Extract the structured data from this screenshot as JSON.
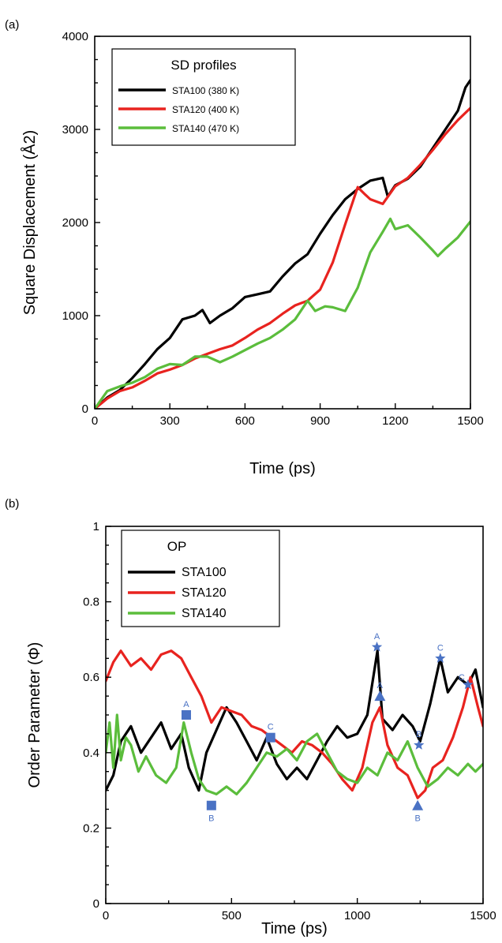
{
  "colors": {
    "black": "#000000",
    "red": "#e8231f",
    "green": "#5bbd3c",
    "marker": "#4a72c4"
  },
  "chart_data": [
    {
      "panel_label": "(a)",
      "type": "line",
      "ylabel": "Square Displacement (Å2)",
      "xlabel": "Time (ps)",
      "xlim": [
        0,
        1500
      ],
      "ylim": [
        0,
        4000
      ],
      "xticks": [
        0,
        300,
        600,
        900,
        1200,
        1500
      ],
      "yticks": [
        0,
        1000,
        2000,
        3000,
        4000
      ],
      "legend": {
        "title": "SD profiles",
        "placement": "top-left"
      },
      "series": [
        {
          "name": "STA100 (380 K)",
          "color": "#000000",
          "points": [
            [
              0,
              0
            ],
            [
              50,
              120
            ],
            [
              100,
              200
            ],
            [
              150,
              330
            ],
            [
              200,
              480
            ],
            [
              250,
              640
            ],
            [
              300,
              760
            ],
            [
              350,
              960
            ],
            [
              400,
              1000
            ],
            [
              430,
              1060
            ],
            [
              460,
              920
            ],
            [
              500,
              1000
            ],
            [
              550,
              1080
            ],
            [
              600,
              1200
            ],
            [
              650,
              1230
            ],
            [
              700,
              1260
            ],
            [
              750,
              1420
            ],
            [
              800,
              1560
            ],
            [
              850,
              1660
            ],
            [
              900,
              1880
            ],
            [
              950,
              2080
            ],
            [
              1000,
              2250
            ],
            [
              1050,
              2360
            ],
            [
              1100,
              2450
            ],
            [
              1150,
              2480
            ],
            [
              1170,
              2280
            ],
            [
              1200,
              2400
            ],
            [
              1250,
              2470
            ],
            [
              1300,
              2600
            ],
            [
              1350,
              2800
            ],
            [
              1400,
              3000
            ],
            [
              1450,
              3200
            ],
            [
              1480,
              3450
            ],
            [
              1500,
              3530
            ]
          ]
        },
        {
          "name": "STA120 (400 K)",
          "color": "#e8231f",
          "points": [
            [
              0,
              0
            ],
            [
              50,
              110
            ],
            [
              100,
              190
            ],
            [
              150,
              230
            ],
            [
              200,
              300
            ],
            [
              250,
              380
            ],
            [
              300,
              420
            ],
            [
              350,
              470
            ],
            [
              400,
              540
            ],
            [
              450,
              590
            ],
            [
              500,
              640
            ],
            [
              550,
              680
            ],
            [
              600,
              760
            ],
            [
              650,
              850
            ],
            [
              700,
              920
            ],
            [
              750,
              1020
            ],
            [
              800,
              1110
            ],
            [
              850,
              1160
            ],
            [
              900,
              1280
            ],
            [
              950,
              1570
            ],
            [
              1000,
              1980
            ],
            [
              1050,
              2380
            ],
            [
              1080,
              2300
            ],
            [
              1100,
              2250
            ],
            [
              1150,
              2200
            ],
            [
              1200,
              2390
            ],
            [
              1250,
              2480
            ],
            [
              1300,
              2620
            ],
            [
              1350,
              2780
            ],
            [
              1400,
              2950
            ],
            [
              1450,
              3100
            ],
            [
              1500,
              3230
            ]
          ]
        },
        {
          "name": "STA140 (470 K)",
          "color": "#5bbd3c",
          "points": [
            [
              0,
              0
            ],
            [
              50,
              190
            ],
            [
              100,
              240
            ],
            [
              150,
              280
            ],
            [
              200,
              340
            ],
            [
              250,
              430
            ],
            [
              300,
              480
            ],
            [
              350,
              470
            ],
            [
              400,
              560
            ],
            [
              450,
              560
            ],
            [
              500,
              500
            ],
            [
              550,
              560
            ],
            [
              600,
              630
            ],
            [
              650,
              700
            ],
            [
              700,
              760
            ],
            [
              750,
              850
            ],
            [
              800,
              960
            ],
            [
              850,
              1160
            ],
            [
              880,
              1050
            ],
            [
              920,
              1100
            ],
            [
              950,
              1090
            ],
            [
              1000,
              1050
            ],
            [
              1050,
              1300
            ],
            [
              1100,
              1680
            ],
            [
              1150,
              1900
            ],
            [
              1180,
              2040
            ],
            [
              1200,
              1930
            ],
            [
              1250,
              1970
            ],
            [
              1300,
              1840
            ],
            [
              1350,
              1700
            ],
            [
              1370,
              1640
            ],
            [
              1400,
              1720
            ],
            [
              1450,
              1840
            ],
            [
              1500,
              2010
            ]
          ]
        }
      ]
    },
    {
      "panel_label": "(b)",
      "type": "line",
      "ylabel": "Order Parameter (Φ)",
      "xlabel": "Time (ps)",
      "xlim": [
        0,
        1500
      ],
      "ylim": [
        0,
        1
      ],
      "xticks": [
        0,
        500,
        1000,
        1500
      ],
      "yticks": [
        0,
        0.2,
        0.4,
        0.6,
        0.8,
        1
      ],
      "ytick_labels": [
        "0",
        "0.2",
        "0.4",
        "0.6",
        "0.8",
        "1"
      ],
      "legend": {
        "title": "OP",
        "placement": "top-left"
      },
      "series": [
        {
          "name": "STA100",
          "color": "#000000",
          "points": [
            [
              0,
              0.3
            ],
            [
              30,
              0.34
            ],
            [
              60,
              0.43
            ],
            [
              100,
              0.47
            ],
            [
              140,
              0.4
            ],
            [
              180,
              0.44
            ],
            [
              220,
              0.48
            ],
            [
              260,
              0.41
            ],
            [
              300,
              0.45
            ],
            [
              330,
              0.36
            ],
            [
              370,
              0.3
            ],
            [
              400,
              0.4
            ],
            [
              440,
              0.46
            ],
            [
              480,
              0.52
            ],
            [
              520,
              0.48
            ],
            [
              560,
              0.43
            ],
            [
              600,
              0.38
            ],
            [
              640,
              0.44
            ],
            [
              680,
              0.37
            ],
            [
              720,
              0.33
            ],
            [
              760,
              0.36
            ],
            [
              800,
              0.33
            ],
            [
              840,
              0.38
            ],
            [
              880,
              0.43
            ],
            [
              920,
              0.47
            ],
            [
              960,
              0.44
            ],
            [
              1000,
              0.45
            ],
            [
              1040,
              0.5
            ],
            [
              1080,
              0.67
            ],
            [
              1100,
              0.49
            ],
            [
              1140,
              0.46
            ],
            [
              1180,
              0.5
            ],
            [
              1220,
              0.47
            ],
            [
              1250,
              0.43
            ],
            [
              1290,
              0.53
            ],
            [
              1330,
              0.65
            ],
            [
              1360,
              0.56
            ],
            [
              1400,
              0.6
            ],
            [
              1440,
              0.58
            ],
            [
              1470,
              0.62
            ],
            [
              1500,
              0.52
            ]
          ]
        },
        {
          "name": "STA120",
          "color": "#e8231f",
          "points": [
            [
              0,
              0.59
            ],
            [
              30,
              0.64
            ],
            [
              60,
              0.67
            ],
            [
              100,
              0.63
            ],
            [
              140,
              0.65
            ],
            [
              180,
              0.62
            ],
            [
              220,
              0.66
            ],
            [
              260,
              0.67
            ],
            [
              300,
              0.65
            ],
            [
              340,
              0.6
            ],
            [
              380,
              0.55
            ],
            [
              420,
              0.48
            ],
            [
              460,
              0.52
            ],
            [
              500,
              0.51
            ],
            [
              540,
              0.5
            ],
            [
              580,
              0.47
            ],
            [
              620,
              0.46
            ],
            [
              660,
              0.44
            ],
            [
              700,
              0.42
            ],
            [
              740,
              0.4
            ],
            [
              780,
              0.43
            ],
            [
              820,
              0.42
            ],
            [
              860,
              0.4
            ],
            [
              900,
              0.37
            ],
            [
              940,
              0.33
            ],
            [
              980,
              0.3
            ],
            [
              1020,
              0.36
            ],
            [
              1060,
              0.48
            ],
            [
              1090,
              0.52
            ],
            [
              1120,
              0.42
            ],
            [
              1160,
              0.36
            ],
            [
              1200,
              0.34
            ],
            [
              1240,
              0.28
            ],
            [
              1270,
              0.3
            ],
            [
              1300,
              0.36
            ],
            [
              1340,
              0.38
            ],
            [
              1380,
              0.44
            ],
            [
              1420,
              0.52
            ],
            [
              1450,
              0.6
            ],
            [
              1480,
              0.52
            ],
            [
              1500,
              0.47
            ]
          ]
        },
        {
          "name": "STA140",
          "color": "#5bbd3c",
          "points": [
            [
              0,
              0.4
            ],
            [
              15,
              0.48
            ],
            [
              30,
              0.36
            ],
            [
              45,
              0.5
            ],
            [
              60,
              0.38
            ],
            [
              80,
              0.44
            ],
            [
              100,
              0.42
            ],
            [
              130,
              0.35
            ],
            [
              160,
              0.39
            ],
            [
              200,
              0.34
            ],
            [
              240,
              0.32
            ],
            [
              280,
              0.36
            ],
            [
              310,
              0.48
            ],
            [
              340,
              0.4
            ],
            [
              370,
              0.33
            ],
            [
              400,
              0.3
            ],
            [
              440,
              0.29
            ],
            [
              480,
              0.31
            ],
            [
              520,
              0.29
            ],
            [
              560,
              0.32
            ],
            [
              600,
              0.36
            ],
            [
              640,
              0.4
            ],
            [
              680,
              0.39
            ],
            [
              720,
              0.41
            ],
            [
              760,
              0.38
            ],
            [
              800,
              0.43
            ],
            [
              840,
              0.45
            ],
            [
              880,
              0.4
            ],
            [
              920,
              0.35
            ],
            [
              960,
              0.33
            ],
            [
              1000,
              0.32
            ],
            [
              1040,
              0.36
            ],
            [
              1080,
              0.34
            ],
            [
              1120,
              0.4
            ],
            [
              1160,
              0.38
            ],
            [
              1200,
              0.43
            ],
            [
              1240,
              0.36
            ],
            [
              1280,
              0.31
            ],
            [
              1320,
              0.33
            ],
            [
              1360,
              0.36
            ],
            [
              1400,
              0.34
            ],
            [
              1440,
              0.37
            ],
            [
              1470,
              0.35
            ],
            [
              1500,
              0.37
            ]
          ]
        }
      ],
      "markers": [
        {
          "shape": "square",
          "label": "A",
          "x": 320,
          "y": 0.5,
          "label_pos": "above"
        },
        {
          "shape": "square",
          "label": "B",
          "x": 420,
          "y": 0.26,
          "label_pos": "below"
        },
        {
          "shape": "square",
          "label": "C",
          "x": 655,
          "y": 0.44,
          "label_pos": "above"
        },
        {
          "shape": "star",
          "label": "A",
          "x": 1078,
          "y": 0.68,
          "label_pos": "above"
        },
        {
          "shape": "triangle",
          "label": "A",
          "x": 1090,
          "y": 0.55,
          "label_pos": "above"
        },
        {
          "shape": "star",
          "label": "B",
          "x": 1245,
          "y": 0.42,
          "label_pos": "above"
        },
        {
          "shape": "triangle",
          "label": "B",
          "x": 1240,
          "y": 0.26,
          "label_pos": "below"
        },
        {
          "shape": "star",
          "label": "C",
          "x": 1330,
          "y": 0.65,
          "label_pos": "above"
        },
        {
          "shape": "star",
          "label": "C",
          "x": 1440,
          "y": 0.58,
          "label_pos": "above-left"
        }
      ]
    }
  ]
}
